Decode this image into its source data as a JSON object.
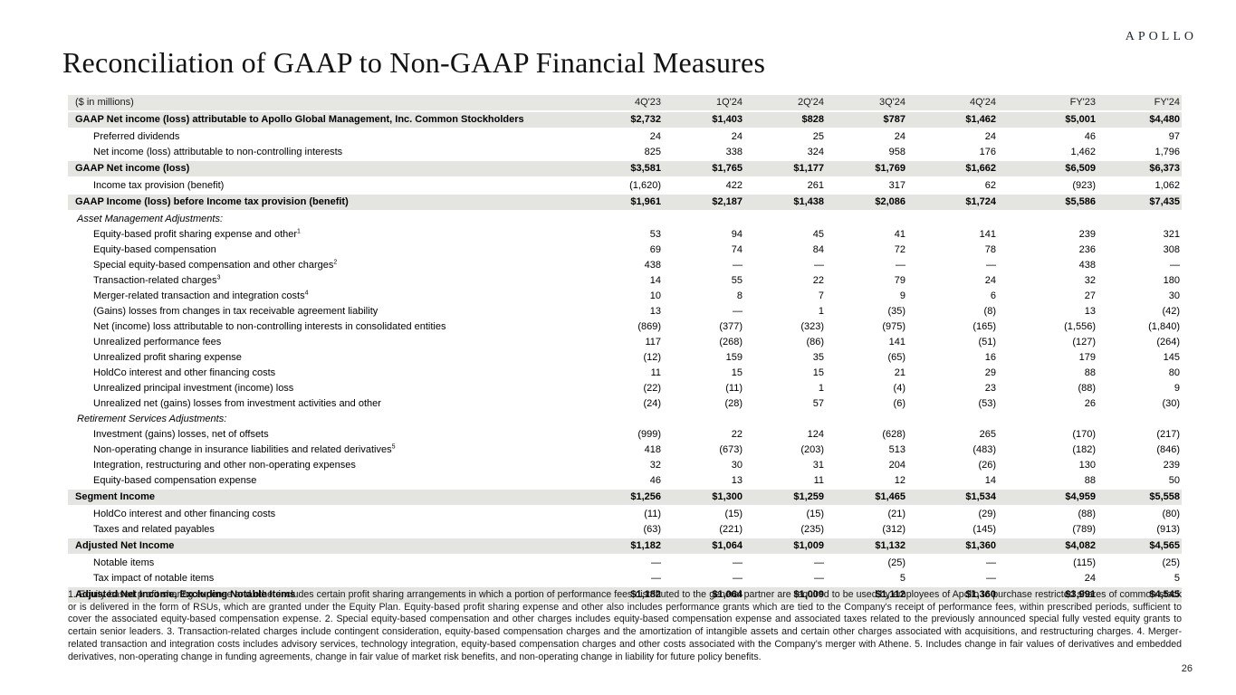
{
  "logo": "APOLLO",
  "page": {
    "title": "Reconciliation of GAAP to Non-GAAP Financial Measures",
    "number": "26"
  },
  "table": {
    "unit_label": "($ in millions)",
    "columns": [
      "4Q'23",
      "1Q'24",
      "2Q'24",
      "3Q'24",
      "4Q'24",
      "FY'23",
      "FY'24"
    ],
    "rows": [
      {
        "label": "GAAP Net income (loss) attributable to Apollo Global Management, Inc. Common Stockholders",
        "sup": "",
        "style": "total",
        "values": [
          "$2,732",
          "$1,403",
          "$828",
          "$787",
          "$1,462",
          "$5,001",
          "$4,480"
        ]
      },
      {
        "label": "Preferred dividends",
        "sup": "",
        "style": "sub",
        "values": [
          "24",
          "24",
          "25",
          "24",
          "24",
          "46",
          "97"
        ]
      },
      {
        "label": "Net income (loss) attributable to non-controlling interests",
        "sup": "",
        "style": "sub",
        "values": [
          "825",
          "338",
          "324",
          "958",
          "176",
          "1,462",
          "1,796"
        ]
      },
      {
        "label": "GAAP Net income (loss)",
        "sup": "",
        "style": "total",
        "values": [
          "$3,581",
          "$1,765",
          "$1,177",
          "$1,769",
          "$1,662",
          "$6,509",
          "$6,373"
        ]
      },
      {
        "label": "Income tax provision (benefit)",
        "sup": "",
        "style": "sub",
        "values": [
          "(1,620)",
          "422",
          "261",
          "317",
          "62",
          "(923)",
          "1,062"
        ]
      },
      {
        "label": "GAAP Income (loss) before Income tax provision (benefit)",
        "sup": "",
        "style": "total",
        "values": [
          "$1,961",
          "$2,187",
          "$1,438",
          "$2,086",
          "$1,724",
          "$5,586",
          "$7,435"
        ]
      },
      {
        "label": "Asset Management Adjustments:",
        "sup": "",
        "style": "section",
        "values": [
          "",
          "",
          "",
          "",
          "",
          "",
          ""
        ]
      },
      {
        "label": "Equity-based profit sharing expense and other",
        "sup": "1",
        "style": "sub",
        "values": [
          "53",
          "94",
          "45",
          "41",
          "141",
          "239",
          "321"
        ]
      },
      {
        "label": "Equity-based compensation",
        "sup": "",
        "style": "sub",
        "values": [
          "69",
          "74",
          "84",
          "72",
          "78",
          "236",
          "308"
        ]
      },
      {
        "label": "Special equity-based compensation and other charges",
        "sup": "2",
        "style": "sub",
        "values": [
          "438",
          "—",
          "—",
          "—",
          "—",
          "438",
          "—"
        ]
      },
      {
        "label": "Transaction-related charges",
        "sup": "3",
        "style": "sub",
        "values": [
          "14",
          "55",
          "22",
          "79",
          "24",
          "32",
          "180"
        ]
      },
      {
        "label": "Merger-related transaction and integration costs",
        "sup": "4",
        "style": "sub",
        "values": [
          "10",
          "8",
          "7",
          "9",
          "6",
          "27",
          "30"
        ]
      },
      {
        "label": "(Gains) losses from changes in tax receivable agreement liability",
        "sup": "",
        "style": "sub",
        "values": [
          "13",
          "—",
          "1",
          "(35)",
          "(8)",
          "13",
          "(42)"
        ]
      },
      {
        "label": "Net (income) loss attributable to non-controlling interests in consolidated entities",
        "sup": "",
        "style": "sub",
        "values": [
          "(869)",
          "(377)",
          "(323)",
          "(975)",
          "(165)",
          "(1,556)",
          "(1,840)"
        ]
      },
      {
        "label": "Unrealized performance fees",
        "sup": "",
        "style": "sub",
        "values": [
          "117",
          "(268)",
          "(86)",
          "141",
          "(51)",
          "(127)",
          "(264)"
        ]
      },
      {
        "label": "Unrealized profit sharing expense",
        "sup": "",
        "style": "sub",
        "values": [
          "(12)",
          "159",
          "35",
          "(65)",
          "16",
          "179",
          "145"
        ]
      },
      {
        "label": "HoldCo interest and other financing costs",
        "sup": "",
        "style": "sub",
        "values": [
          "11",
          "15",
          "15",
          "21",
          "29",
          "88",
          "80"
        ]
      },
      {
        "label": "Unrealized principal investment (income) loss",
        "sup": "",
        "style": "sub",
        "values": [
          "(22)",
          "(11)",
          "1",
          "(4)",
          "23",
          "(88)",
          "9"
        ]
      },
      {
        "label": "Unrealized net (gains) losses from investment activities and other",
        "sup": "",
        "style": "sub",
        "values": [
          "(24)",
          "(28)",
          "57",
          "(6)",
          "(53)",
          "26",
          "(30)"
        ]
      },
      {
        "label": "Retirement Services Adjustments:",
        "sup": "",
        "style": "section",
        "values": [
          "",
          "",
          "",
          "",
          "",
          "",
          ""
        ]
      },
      {
        "label": "Investment (gains) losses, net of offsets",
        "sup": "",
        "style": "sub",
        "values": [
          "(999)",
          "22",
          "124",
          "(628)",
          "265",
          "(170)",
          "(217)"
        ]
      },
      {
        "label": "Non-operating change in insurance liabilities and related derivatives",
        "sup": "5",
        "style": "sub",
        "values": [
          "418",
          "(673)",
          "(203)",
          "513",
          "(483)",
          "(182)",
          "(846)"
        ]
      },
      {
        "label": "Integration, restructuring and other non-operating expenses",
        "sup": "",
        "style": "sub",
        "values": [
          "32",
          "30",
          "31",
          "204",
          "(26)",
          "130",
          "239"
        ]
      },
      {
        "label": "Equity-based compensation expense",
        "sup": "",
        "style": "sub",
        "values": [
          "46",
          "13",
          "11",
          "12",
          "14",
          "88",
          "50"
        ]
      },
      {
        "label": "Segment Income",
        "sup": "",
        "style": "total",
        "values": [
          "$1,256",
          "$1,300",
          "$1,259",
          "$1,465",
          "$1,534",
          "$4,959",
          "$5,558"
        ]
      },
      {
        "label": "HoldCo interest and other financing costs",
        "sup": "",
        "style": "sub",
        "values": [
          "(11)",
          "(15)",
          "(15)",
          "(21)",
          "(29)",
          "(88)",
          "(80)"
        ]
      },
      {
        "label": "Taxes and related payables",
        "sup": "",
        "style": "sub",
        "values": [
          "(63)",
          "(221)",
          "(235)",
          "(312)",
          "(145)",
          "(789)",
          "(913)"
        ]
      },
      {
        "label": "Adjusted Net Income",
        "sup": "",
        "style": "total",
        "values": [
          "$1,182",
          "$1,064",
          "$1,009",
          "$1,132",
          "$1,360",
          "$4,082",
          "$4,565"
        ]
      },
      {
        "label": "Notable items",
        "sup": "",
        "style": "sub",
        "values": [
          "—",
          "—",
          "—",
          "(25)",
          "—",
          "(115)",
          "(25)"
        ]
      },
      {
        "label": "Tax impact of notable items",
        "sup": "",
        "style": "sub",
        "values": [
          "—",
          "—",
          "—",
          "5",
          "—",
          "24",
          "5"
        ]
      },
      {
        "label": "Adjusted Net Income, Excluding Notable Items",
        "sup": "",
        "style": "total",
        "values": [
          "$1,182",
          "$1,064",
          "$1,009",
          "$1,112",
          "$1,360",
          "$3,991",
          "$4,545"
        ]
      }
    ]
  },
  "footnotes": "1. Equity-based profit sharing expense and other includes certain profit sharing arrangements in which a portion of performance fees distributed to the general partner are required to be used by employees of Apollo to purchase restricted shares of common stock or is delivered in the form of RSUs, which are granted under the Equity Plan. Equity-based profit sharing expense and other also includes performance grants which are tied to the Company's receipt of performance fees, within prescribed periods, sufficient to cover the associated equity-based compensation expense. 2. Special equity-based compensation and other charges includes equity-based compensation expense and associated taxes related to the previously announced special fully vested equity grants to certain senior leaders. 3. Transaction-related charges include contingent consideration, equity-based compensation charges and the amortization of intangible assets and certain other charges associated with acquisitions, and restructuring charges. 4. Merger-related transaction and integration costs includes advisory services, technology integration, equity-based compensation charges and other costs associated with the Company's merger with Athene. 5. Includes change in fair values of derivatives and embedded derivatives, non-operating change in funding agreements, change in fair value of market risk benefits, and non-operating change in liability for future policy benefits.",
  "colors": {
    "row_shade": "#e4e4e0",
    "header_shade": "#e6e6e2",
    "background": "#ffffff",
    "text": "#000000"
  }
}
